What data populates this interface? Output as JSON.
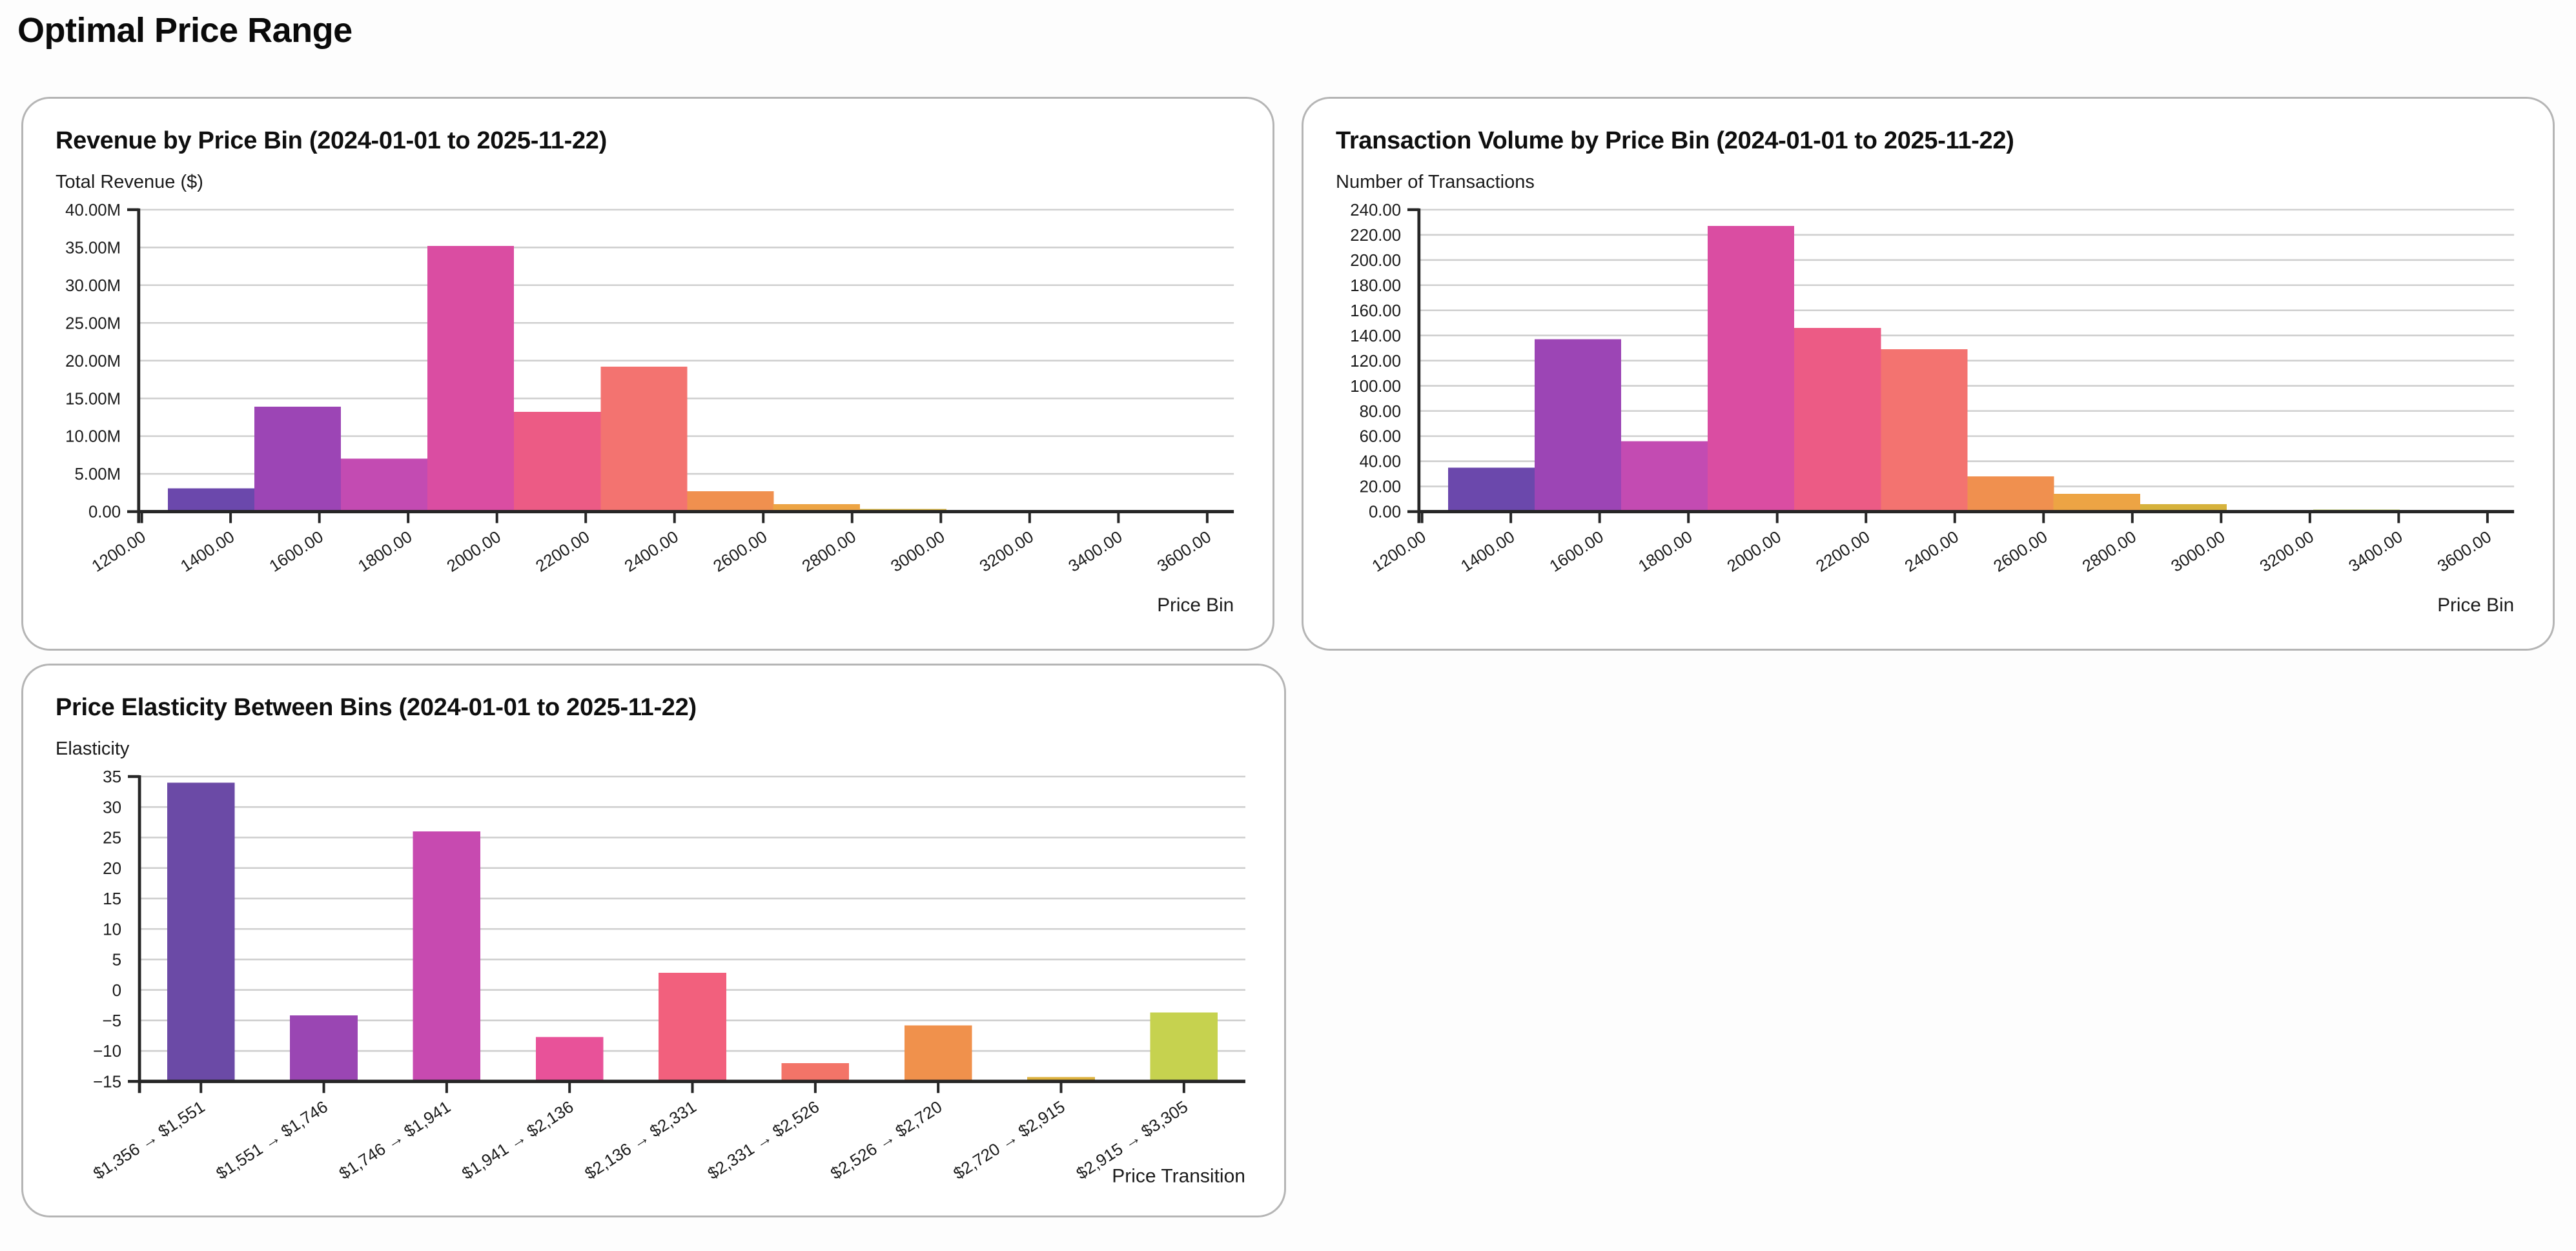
{
  "page": {
    "title": "Optimal Price Range"
  },
  "chart_data": [
    {
      "type": "bar",
      "title": "Revenue by Price Bin (2024-01-01 to 2025-11-22)",
      "ylabel": "Total Revenue ($)",
      "xlabel": "Price Bin",
      "grid": true,
      "xlim": [
        1193,
        3660
      ],
      "ylim": [
        0,
        40000000
      ],
      "x_ticks": [
        1200,
        1400,
        1600,
        1800,
        2000,
        2200,
        2400,
        2600,
        2800,
        3000,
        3200,
        3400,
        3600
      ],
      "x_tick_labels": [
        "1200.00",
        "1400.00",
        "1600.00",
        "1800.00",
        "2000.00",
        "2200.00",
        "2400.00",
        "2600.00",
        "2800.00",
        "3000.00",
        "3200.00",
        "3400.00",
        "3600.00"
      ],
      "y_ticks": [
        0,
        5000000,
        10000000,
        15000000,
        20000000,
        25000000,
        30000000,
        35000000,
        40000000
      ],
      "y_tick_labels": [
        "0.00",
        "5.00M",
        "10.00M",
        "15.00M",
        "20.00M",
        "25.00M",
        "30.00M",
        "35.00M",
        "40.00M"
      ],
      "bin_width": 195,
      "bars": [
        {
          "center": 1356,
          "value": 3100000,
          "color": "#6b48ac"
        },
        {
          "center": 1551,
          "value": 13900000,
          "color": "#9c45b5"
        },
        {
          "center": 1746,
          "value": 7000000,
          "color": "#c34bb2"
        },
        {
          "center": 1941,
          "value": 35200000,
          "color": "#da4da2"
        },
        {
          "center": 2136,
          "value": 13200000,
          "color": "#ec5b85"
        },
        {
          "center": 2331,
          "value": 19200000,
          "color": "#f37370"
        },
        {
          "center": 2526,
          "value": 2700000,
          "color": "#f0904f"
        },
        {
          "center": 2720,
          "value": 1000000,
          "color": "#eda444"
        },
        {
          "center": 2915,
          "value": 360000,
          "color": "#d6b23c"
        },
        {
          "center": 3305,
          "value": 200000,
          "color": "#bccf52"
        }
      ]
    },
    {
      "type": "bar",
      "title": "Transaction Volume by Price Bin (2024-01-01 to 2025-11-22)",
      "ylabel": "Number of Transactions",
      "xlabel": "Price Bin",
      "grid": true,
      "xlim": [
        1193,
        3660
      ],
      "ylim": [
        0,
        240
      ],
      "x_ticks": [
        1200,
        1400,
        1600,
        1800,
        2000,
        2200,
        2400,
        2600,
        2800,
        3000,
        3200,
        3400,
        3600
      ],
      "x_tick_labels": [
        "1200.00",
        "1400.00",
        "1600.00",
        "1800.00",
        "2000.00",
        "2200.00",
        "2400.00",
        "2600.00",
        "2800.00",
        "3000.00",
        "3200.00",
        "3400.00",
        "3600.00"
      ],
      "y_ticks": [
        0,
        20,
        40,
        60,
        80,
        100,
        120,
        140,
        160,
        180,
        200,
        220,
        240
      ],
      "y_tick_labels": [
        "0.00",
        "20.00",
        "40.00",
        "60.00",
        "80.00",
        "100.00",
        "120.00",
        "140.00",
        "160.00",
        "180.00",
        "200.00",
        "220.00",
        "240.00"
      ],
      "bin_width": 195,
      "bars": [
        {
          "center": 1356,
          "value": 35,
          "color": "#6b48ac"
        },
        {
          "center": 1551,
          "value": 137,
          "color": "#9c45b5"
        },
        {
          "center": 1746,
          "value": 56,
          "color": "#c34bb2"
        },
        {
          "center": 1941,
          "value": 227,
          "color": "#da4da2"
        },
        {
          "center": 2136,
          "value": 146,
          "color": "#ec5b85"
        },
        {
          "center": 2331,
          "value": 129,
          "color": "#f37370"
        },
        {
          "center": 2526,
          "value": 28,
          "color": "#f0904f"
        },
        {
          "center": 2720,
          "value": 14,
          "color": "#eda444"
        },
        {
          "center": 2915,
          "value": 6,
          "color": "#d6b23c"
        },
        {
          "center": 3305,
          "value": 1.5,
          "color": "#bccf52"
        }
      ]
    },
    {
      "type": "bar",
      "title": "Price Elasticity Between Bins (2024-01-01 to 2025-11-22)",
      "ylabel": "Elasticity",
      "xlabel": "Price Transition",
      "grid": true,
      "ylim": [
        -15,
        35
      ],
      "baseline": -15,
      "y_ticks": [
        -15,
        -10,
        -5,
        0,
        5,
        10,
        15,
        20,
        25,
        30,
        35
      ],
      "y_tick_labels": [
        "−15",
        "−10",
        "−5",
        "0",
        "5",
        "10",
        "15",
        "20",
        "25",
        "30",
        "35"
      ],
      "categories": [
        "$1,356 → $1,551",
        "$1,551 → $1,746",
        "$1,746 → $1,941",
        "$1,941 → $2,136",
        "$2,136 → $2,331",
        "$2,331 → $2,526",
        "$2,526 → $2,720",
        "$2,720 → $2,915",
        "$2,915 → $3,305"
      ],
      "values": [
        34,
        -4.2,
        26,
        -7.7,
        2.8,
        -12,
        -5.8,
        -14.3,
        -3.7
      ],
      "colors": [
        "#6b4aa6",
        "#9a46b3",
        "#c74ab0",
        "#e85299",
        "#f2607d",
        "#f37468",
        "#f0914c",
        "#ddb23e",
        "#c6d24f"
      ]
    }
  ]
}
